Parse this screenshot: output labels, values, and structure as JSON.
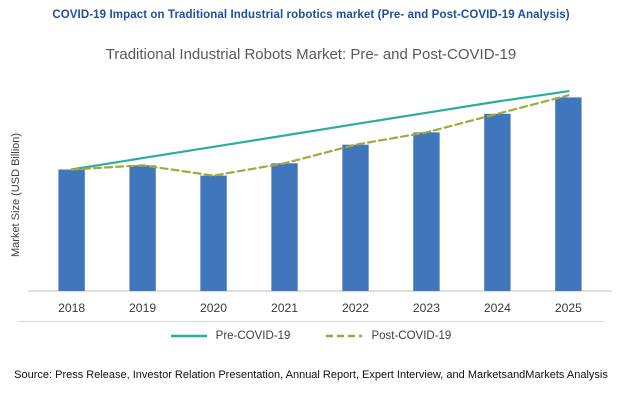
{
  "header": {
    "title": "COVID-19 Impact on Traditional Industrial robotics market (Pre- and Post-COVID-19 Analysis)",
    "color": "#1F4E9F"
  },
  "chart_data": {
    "type": "bar",
    "title": "Traditional Industrial Robots Market: Pre- and Post-COVID-19",
    "ylabel": "Market Size (USD Billion)",
    "xlabel": "",
    "categories": [
      "2018",
      "2019",
      "2020",
      "2021",
      "2022",
      "2023",
      "2024",
      "2025"
    ],
    "ylim": [
      0,
      100
    ],
    "grid": false,
    "legend_position": "bottom",
    "bars": {
      "name": "Market Size (USD Billion)",
      "color": "#3F76BC",
      "values": [
        59,
        61,
        56,
        62,
        71,
        77,
        86,
        94
      ]
    },
    "series": [
      {
        "name": "Pre-COVID-19",
        "type": "line",
        "style": "solid",
        "color": "#2AAE9F",
        "values": [
          59,
          64.5,
          70,
          75.5,
          81,
          86.5,
          92,
          97
        ]
      },
      {
        "name": "Post-COVID-19",
        "type": "line",
        "style": "dashed",
        "color": "#A3A93B",
        "values": [
          59,
          61,
          56,
          62,
          71,
          77,
          86,
          95
        ]
      }
    ]
  },
  "footer": {
    "source": "Source: Press Release, Investor Relation Presentation, Annual Report, Expert Interview, and MarketsandMarkets Analysis"
  }
}
